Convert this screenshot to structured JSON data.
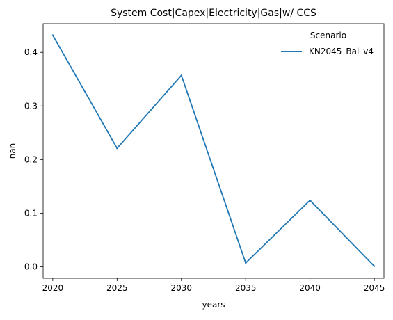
{
  "chart_data": {
    "type": "line",
    "title": "System Cost|Capex|Electricity|Gas|w/ CCS",
    "xlabel": "years",
    "ylabel": "nan",
    "x": [
      2020,
      2025,
      2030,
      2035,
      2040,
      2045
    ],
    "x_ticks": [
      "2020",
      "2025",
      "2030",
      "2035",
      "2040",
      "2045"
    ],
    "y_ticks": [
      "0.0",
      "0.1",
      "0.2",
      "0.3",
      "0.4"
    ],
    "xlim": [
      2019.25,
      2045.75
    ],
    "ylim": [
      -0.0215,
      0.4535
    ],
    "grid": false,
    "legend": {
      "title": "Scenario",
      "placement": "top-right"
    },
    "series": [
      {
        "name": "KN2045_Bal_v4",
        "color": "#1f77b4",
        "values": [
          0.432,
          0.221,
          0.357,
          0.007,
          0.124,
          0.001
        ]
      }
    ]
  }
}
